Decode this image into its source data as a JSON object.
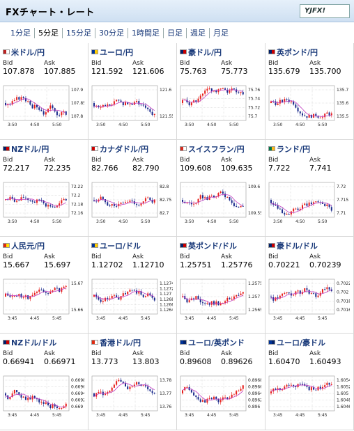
{
  "header": {
    "title": "FXチャート・レート",
    "logo": "YJFX!"
  },
  "tabs": [
    {
      "label": "1分足"
    },
    {
      "label": "5分足",
      "active": true
    },
    {
      "label": "15分足"
    },
    {
      "label": "30分足"
    },
    {
      "label": "1時間足"
    },
    {
      "label": "日足"
    },
    {
      "label": "週足"
    },
    {
      "label": "月足"
    }
  ],
  "bid_label": "Bid",
  "ask_label": "Ask",
  "pairs": [
    {
      "name": "米ドル/円",
      "bid": "107.878",
      "ask": "107.885",
      "y_ticks": [
        "107.9",
        "107.85",
        "107.8"
      ],
      "x_ticks": [
        "3:50",
        "4:50",
        "5:50"
      ]
    },
    {
      "name": "ユーロ/円",
      "bid": "121.592",
      "ask": "121.606",
      "y_ticks": [
        "121.6",
        "121.55"
      ],
      "x_ticks": [
        "3:50",
        "4:50",
        "5:50"
      ]
    },
    {
      "name": "豪ドル/円",
      "bid": "75.763",
      "ask": "75.773",
      "y_ticks": [
        "75.76",
        "75.74",
        "75.72",
        "75.7"
      ],
      "x_ticks": [
        "3:50",
        "4:50",
        "5:50"
      ]
    },
    {
      "name": "英ポンド/円",
      "bid": "135.679",
      "ask": "135.700",
      "y_ticks": [
        "135.7",
        "135.6",
        "135.5"
      ],
      "x_ticks": [
        "3:50",
        "4:50",
        "5:50"
      ]
    },
    {
      "name": "NZドル/円",
      "bid": "72.217",
      "ask": "72.235",
      "y_ticks": [
        "72.22",
        "72.2",
        "72.18",
        "72.16"
      ],
      "x_ticks": [
        "3:50",
        "4:50",
        "5:50"
      ]
    },
    {
      "name": "カナダドル/円",
      "bid": "82.766",
      "ask": "82.790",
      "y_ticks": [
        "82.8",
        "82.75",
        "82.7"
      ],
      "x_ticks": [
        "3:50",
        "4:50",
        "5:50"
      ]
    },
    {
      "name": "スイスフラン/円",
      "bid": "109.608",
      "ask": "109.635",
      "y_ticks": [
        "109.6",
        "109.55"
      ],
      "x_ticks": [
        "3:50",
        "4:50",
        "5:50"
      ]
    },
    {
      "name": "ランド/円",
      "bid": "7.722",
      "ask": "7.741",
      "y_ticks": [
        "7.72",
        "7.715",
        "7.71"
      ],
      "x_ticks": [
        "3:50",
        "4:50",
        "5:50"
      ]
    },
    {
      "name": "人民元/円",
      "bid": "15.667",
      "ask": "15.697",
      "y_ticks": [
        "15.67",
        "15.66"
      ],
      "x_ticks": [
        "3:45",
        "4:45",
        "5:45"
      ]
    },
    {
      "name": "ユーロ/ドル",
      "bid": "1.12702",
      "ask": "1.12710",
      "y_ticks": [
        "1.1274",
        "1.1272",
        "1.127",
        "1.1268",
        "1.1266",
        "1.1264"
      ],
      "x_ticks": [
        "3:45",
        "4:45",
        "5:45"
      ]
    },
    {
      "name": "英ポンド/ドル",
      "bid": "1.25751",
      "ask": "1.25776",
      "y_ticks": [
        "1.2575",
        "1.257",
        "1.2565"
      ],
      "x_ticks": [
        "3:45",
        "4:45",
        "5:45"
      ]
    },
    {
      "name": "豪ドル/ドル",
      "bid": "0.70221",
      "ask": "0.70239",
      "y_ticks": [
        "0.7022",
        "0.702",
        "0.7018",
        "0.7016"
      ],
      "x_ticks": [
        "3:45",
        "4:45",
        "5:45"
      ]
    },
    {
      "name": "NZドル/ドル",
      "bid": "0.66941",
      "ask": "0.66971",
      "y_ticks": [
        "0.6698",
        "0.6696",
        "0.6694",
        "0.6692",
        "0.669"
      ],
      "x_ticks": [
        "3:45",
        "4:45",
        "5:45"
      ]
    },
    {
      "name": "香港ドル/円",
      "bid": "13.773",
      "ask": "13.803",
      "y_ticks": [
        "13.78",
        "13.77",
        "13.76"
      ],
      "x_ticks": [
        "3:45",
        "4:45",
        "5:45"
      ]
    },
    {
      "name": "ユーロ/英ポンド",
      "bid": "0.89608",
      "ask": "0.89626",
      "y_ticks": [
        "0.8968",
        "0.8966",
        "0.8964",
        "0.8962",
        "0.896"
      ],
      "x_ticks": [
        "3:45",
        "4:45",
        "5:45"
      ]
    },
    {
      "name": "ユーロ/豪ドル",
      "bid": "1.60470",
      "ask": "1.60493",
      "y_ticks": [
        "1.6054",
        "1.6052",
        "1.605",
        "1.6048",
        "1.6046"
      ],
      "x_ticks": [
        "3:45",
        "4:45",
        "5:45"
      ]
    }
  ],
  "colors": {
    "up": "#e8201c",
    "down": "#1a2a8c",
    "ma": "#c03cc0",
    "grid": "#d0d0d0"
  }
}
